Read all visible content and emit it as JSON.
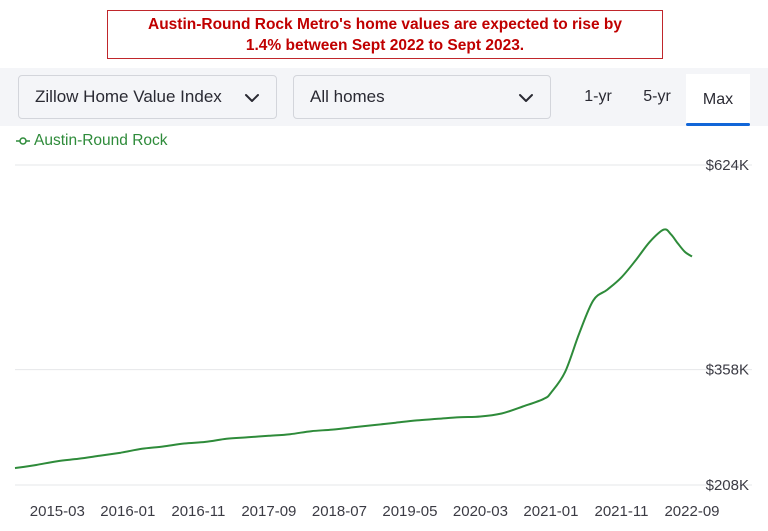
{
  "banner": {
    "line1": "Austin-Round Rock Metro's home values are expected to rise by",
    "line2": "1.4% between Sept 2022 to Sept 2023."
  },
  "controls": {
    "metric_select": "Zillow Home Value Index",
    "homes_select": "All homes",
    "range_tabs": [
      "1-yr",
      "5-yr",
      "Max"
    ],
    "active_range": "Max",
    "chevron_icon": "chevron-down-icon"
  },
  "colors": {
    "line": "#2e8b3a",
    "banner_text": "#c00000",
    "active_tab_underline": "#1166d8"
  },
  "chart_data": {
    "type": "line",
    "title": "",
    "xlabel": "",
    "ylabel": "",
    "legend": "top-left",
    "grid": true,
    "ylim": [
      208,
      624
    ],
    "y_ticks": [
      {
        "value": 624,
        "label": "$624K"
      },
      {
        "value": 358,
        "label": "$358K"
      },
      {
        "value": 208,
        "label": "$208K"
      }
    ],
    "x_ticks": [
      "2015-03",
      "2016-01",
      "2016-11",
      "2017-09",
      "2018-07",
      "2019-05",
      "2020-03",
      "2021-01",
      "2021-11",
      "2022-09"
    ],
    "series": [
      {
        "name": "Austin-Round Rock",
        "unit": "thousand USD",
        "x": [
          "2014-09",
          "2014-12",
          "2015-03",
          "2015-06",
          "2015-09",
          "2015-12",
          "2016-03",
          "2016-06",
          "2016-09",
          "2016-12",
          "2017-03",
          "2017-06",
          "2017-09",
          "2017-12",
          "2018-03",
          "2018-06",
          "2018-09",
          "2018-12",
          "2019-03",
          "2019-06",
          "2019-09",
          "2019-12",
          "2020-03",
          "2020-06",
          "2020-09",
          "2020-12",
          "2021-01",
          "2021-03",
          "2021-05",
          "2021-07",
          "2021-09",
          "2021-11",
          "2022-01",
          "2022-03",
          "2022-05",
          "2022-06",
          "2022-07",
          "2022-08",
          "2022-09"
        ],
        "values": [
          230,
          234,
          239,
          242,
          246,
          250,
          255,
          258,
          262,
          264,
          268,
          270,
          272,
          274,
          278,
          280,
          283,
          286,
          289,
          292,
          294,
          296,
          297,
          301,
          310,
          320,
          328,
          355,
          405,
          448,
          462,
          478,
          500,
          524,
          540,
          534,
          522,
          511,
          505
        ]
      }
    ]
  }
}
